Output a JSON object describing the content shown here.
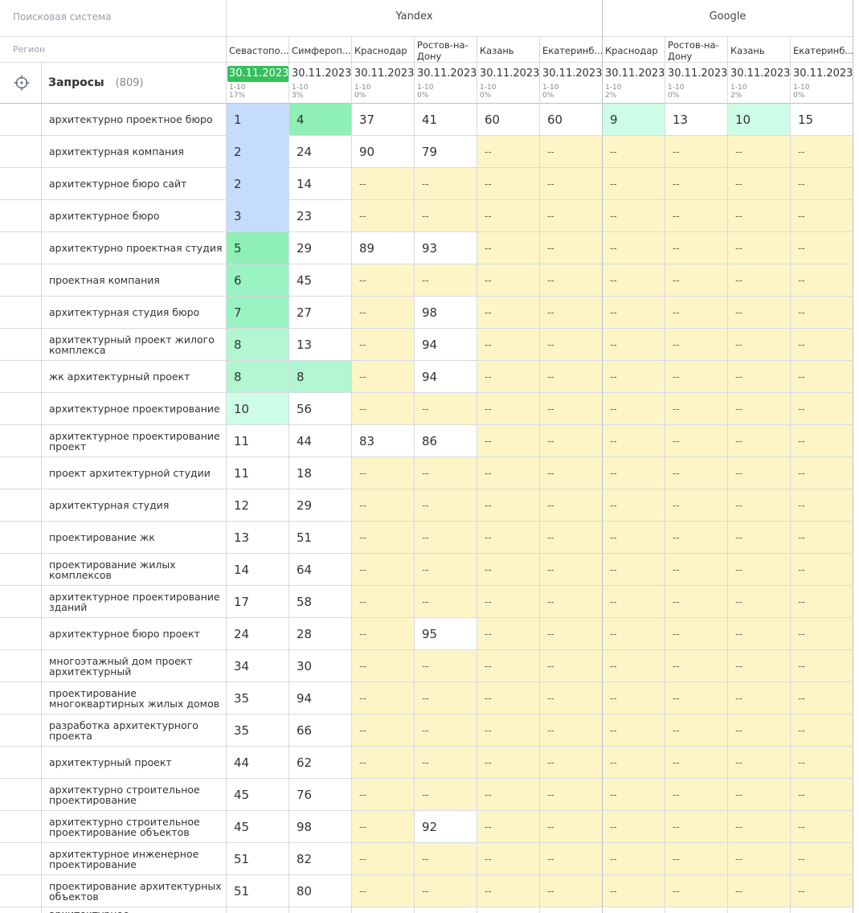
{
  "header": {
    "engine_label": "Поисковая система",
    "region_label": "Регион",
    "engines": [
      {
        "name": "Yandex",
        "regions": 6
      },
      {
        "name": "Google",
        "regions": 4
      }
    ],
    "regions": [
      "Севастопо...",
      "Симфероп...",
      "Краснодар",
      "Ростов-на-Дону",
      "Казань",
      "Екатеринб...",
      "Краснодар",
      "Ростов-на-Дону",
      "Казань",
      "Екатеринб..."
    ],
    "dates": [
      "30.11.2023",
      "30.11.2023",
      "30.11.2023",
      "30.11.2023",
      "30.11.2023",
      "30.11.2023",
      "30.11.2023",
      "30.11.2023",
      "30.11.2023",
      "30.11.2023"
    ],
    "top10_label": "1-10",
    "top10_pct": [
      "17%",
      "3%",
      "0%",
      "0%",
      "0%",
      "0%",
      "2%",
      "0%",
      "2%",
      "0%"
    ],
    "active_date_column": 0
  },
  "queries": {
    "title": "Запросы",
    "count": "(809)",
    "icon": "crosshair-icon"
  },
  "colors": {
    "top1_3": "#c6dcfd",
    "top4_5": "#8ef0b4",
    "top6_7": "#9af3c2",
    "top8": "#b2f6d2",
    "top9_10": "#cdfde6",
    "no_rank": "#fdf5c5",
    "active_date": "#34c05a",
    "border": "#d6dbe2"
  },
  "rows": [
    {
      "keyword": "архитектурно проектное бюро",
      "values": [
        "1",
        "4",
        "37",
        "41",
        "60",
        "60",
        "9",
        "13",
        "10",
        "15"
      ]
    },
    {
      "keyword": "архитектурная компания",
      "values": [
        "2",
        "24",
        "90",
        "79",
        "--",
        "--",
        "--",
        "--",
        "--",
        "--"
      ]
    },
    {
      "keyword": "архитектурное бюро сайт",
      "values": [
        "2",
        "14",
        "--",
        "--",
        "--",
        "--",
        "--",
        "--",
        "--",
        "--"
      ]
    },
    {
      "keyword": "архитектурное бюро",
      "values": [
        "3",
        "23",
        "--",
        "--",
        "--",
        "--",
        "--",
        "--",
        "--",
        "--"
      ]
    },
    {
      "keyword": "архитектурно проектная студия",
      "values": [
        "5",
        "29",
        "89",
        "93",
        "--",
        "--",
        "--",
        "--",
        "--",
        "--"
      ]
    },
    {
      "keyword": "проектная компания",
      "values": [
        "6",
        "45",
        "--",
        "--",
        "--",
        "--",
        "--",
        "--",
        "--",
        "--"
      ]
    },
    {
      "keyword": "архитектурная студия бюро",
      "values": [
        "7",
        "27",
        "--",
        "98",
        "--",
        "--",
        "--",
        "--",
        "--",
        "--"
      ]
    },
    {
      "keyword": "архитектурный проект жилого комплекса",
      "values": [
        "8",
        "13",
        "--",
        "94",
        "--",
        "--",
        "--",
        "--",
        "--",
        "--"
      ]
    },
    {
      "keyword": "жк архитектурный проект",
      "values": [
        "8",
        "8",
        "--",
        "94",
        "--",
        "--",
        "--",
        "--",
        "--",
        "--"
      ]
    },
    {
      "keyword": "архитектурное проектирование",
      "values": [
        "10",
        "56",
        "--",
        "--",
        "--",
        "--",
        "--",
        "--",
        "--",
        "--"
      ]
    },
    {
      "keyword": "архитектурное проектирование проект",
      "values": [
        "11",
        "44",
        "83",
        "86",
        "--",
        "--",
        "--",
        "--",
        "--",
        "--"
      ]
    },
    {
      "keyword": "проект архитектурной студии",
      "values": [
        "11",
        "18",
        "--",
        "--",
        "--",
        "--",
        "--",
        "--",
        "--",
        "--"
      ]
    },
    {
      "keyword": "архитектурная студия",
      "values": [
        "12",
        "29",
        "--",
        "--",
        "--",
        "--",
        "--",
        "--",
        "--",
        "--"
      ]
    },
    {
      "keyword": "проектирование жк",
      "values": [
        "13",
        "51",
        "--",
        "--",
        "--",
        "--",
        "--",
        "--",
        "--",
        "--"
      ]
    },
    {
      "keyword": "проектирование жилых комплексов",
      "values": [
        "14",
        "64",
        "--",
        "--",
        "--",
        "--",
        "--",
        "--",
        "--",
        "--"
      ]
    },
    {
      "keyword": "архитектурное проектирование зданий",
      "values": [
        "17",
        "58",
        "--",
        "--",
        "--",
        "--",
        "--",
        "--",
        "--",
        "--"
      ]
    },
    {
      "keyword": "архитектурное бюро проект",
      "values": [
        "24",
        "28",
        "--",
        "95",
        "--",
        "--",
        "--",
        "--",
        "--",
        "--"
      ]
    },
    {
      "keyword": "многоэтажный дом проект архитектурный",
      "values": [
        "34",
        "30",
        "--",
        "--",
        "--",
        "--",
        "--",
        "--",
        "--",
        "--"
      ]
    },
    {
      "keyword": "проектирование многоквартирных жилых домов",
      "values": [
        "35",
        "94",
        "--",
        "--",
        "--",
        "--",
        "--",
        "--",
        "--",
        "--"
      ]
    },
    {
      "keyword": "разработка архитектурного проекта",
      "values": [
        "35",
        "66",
        "--",
        "--",
        "--",
        "--",
        "--",
        "--",
        "--",
        "--"
      ]
    },
    {
      "keyword": "архитектурный проект",
      "values": [
        "44",
        "62",
        "--",
        "--",
        "--",
        "--",
        "--",
        "--",
        "--",
        "--"
      ]
    },
    {
      "keyword": "архитектурно строительное проектирование",
      "values": [
        "45",
        "76",
        "--",
        "--",
        "--",
        "--",
        "--",
        "--",
        "--",
        "--"
      ]
    },
    {
      "keyword": "архитектурно строительное проектирование объектов",
      "values": [
        "45",
        "98",
        "--",
        "92",
        "--",
        "--",
        "--",
        "--",
        "--",
        "--"
      ]
    },
    {
      "keyword": "архитектурное инженерное проектирование",
      "values": [
        "51",
        "82",
        "--",
        "--",
        "--",
        "--",
        "--",
        "--",
        "--",
        "--"
      ]
    },
    {
      "keyword": "проектирование архитектурных объектов",
      "values": [
        "51",
        "80",
        "--",
        "--",
        "--",
        "--",
        "--",
        "--",
        "--",
        "--"
      ]
    },
    {
      "keyword": "архитектурное",
      "values": [
        "",
        "",
        "",
        "",
        "",
        "",
        "",
        "",
        "",
        ""
      ]
    }
  ]
}
